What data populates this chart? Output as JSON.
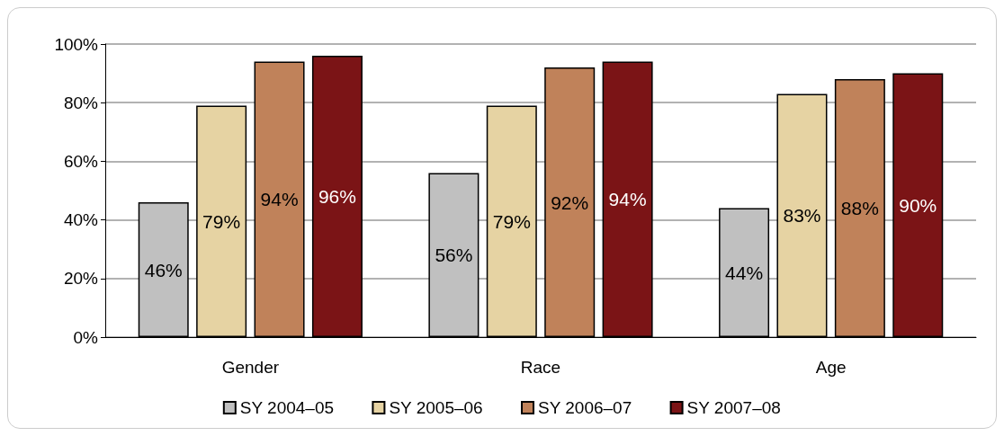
{
  "chart_data": {
    "type": "bar",
    "categories": [
      "Gender",
      "Race",
      "Age"
    ],
    "series": [
      {
        "name": "SY 2004–05",
        "color": "#c0c0c0",
        "values": [
          46,
          56,
          44
        ],
        "value_labels": [
          "46%",
          "56%",
          "44%"
        ]
      },
      {
        "name": "SY 2005–06",
        "color": "#e6d3a3",
        "values": [
          79,
          79,
          83
        ],
        "value_labels": [
          "79%",
          "79%",
          "83%"
        ]
      },
      {
        "name": "SY 2006–07",
        "color": "#c0825a",
        "values": [
          94,
          92,
          88
        ],
        "value_labels": [
          "94%",
          "92%",
          "88%"
        ]
      },
      {
        "name": "SY 2007–08",
        "color": "#7b1416",
        "values": [
          96,
          94,
          90
        ],
        "value_labels": [
          "96%",
          "94%",
          "90%"
        ]
      }
    ],
    "ylim": [
      0,
      100
    ],
    "yticks": [
      {
        "value": 0,
        "label": "0%"
      },
      {
        "value": 20,
        "label": "20%"
      },
      {
        "value": 40,
        "label": "40%"
      },
      {
        "value": 60,
        "label": "60%"
      },
      {
        "value": 80,
        "label": "80%"
      },
      {
        "value": 100,
        "label": "100%"
      }
    ],
    "grid": "y",
    "legend": "bottom"
  }
}
